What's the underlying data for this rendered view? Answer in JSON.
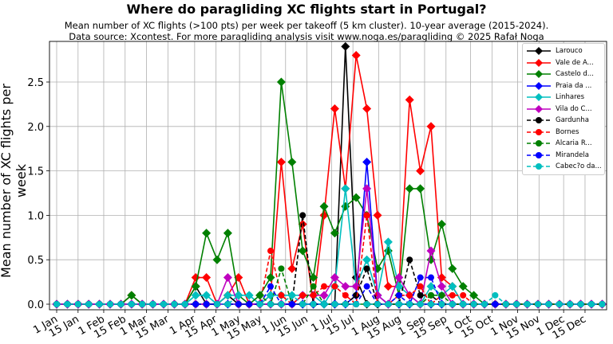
{
  "title": "Where do paragliding XC flights start in Portugal?",
  "subtitle1": "Mean number of XC flights (>100 pts) per week per takeoff (5 km cluster). 10-year average (2015-2024).",
  "subtitle2": "Data source: Xcontest. For more paragliding analysis visit www.noga.es/paragliding © 2025 Rafał Noga",
  "chart_data": {
    "type": "line",
    "title": "Where do paragliding XC flights start in Portugal?",
    "xlabel": "",
    "ylabel": "Mean number of XC flights per week",
    "ylim": [
      -0.05,
      2.95
    ],
    "grid": true,
    "legend_position": "upper right",
    "x_ticks": [
      "1 Jan",
      "15 Jan",
      "1 Feb",
      "15 Feb",
      "1 Mar",
      "15 Mar",
      "1 Apr",
      "15 Apr",
      "1 May",
      "15 May",
      "1 Jun",
      "15 Jun",
      "1 Jul",
      "15 Jul",
      "1 Aug",
      "15 Aug",
      "1 Sep",
      "15 Sep",
      "1 Oct",
      "15 Oct",
      "1 Nov",
      "15 Nov",
      "1 Dec",
      "15 Dec"
    ],
    "y_ticks": [
      "0.0",
      "0.5",
      "1.0",
      "1.5",
      "2.0",
      "2.5"
    ],
    "x": "week index 0-51",
    "series": [
      {
        "name": "Larouco",
        "color": "#000000",
        "style": "solid",
        "marker": "diamond",
        "values": [
          0,
          0,
          0,
          0,
          0,
          0,
          0,
          0,
          0,
          0,
          0,
          0,
          0,
          0.2,
          0,
          0,
          0.1,
          0,
          0,
          0,
          0,
          0,
          0,
          0,
          0,
          0,
          0,
          2.9,
          0.3,
          0,
          0,
          0,
          0,
          0,
          0,
          0,
          0,
          0,
          0,
          0,
          0,
          0,
          0,
          0,
          0,
          0,
          0,
          0,
          0,
          0,
          0,
          0
        ]
      },
      {
        "name": "Vale de A...",
        "color": "#ff0000",
        "style": "solid",
        "marker": "diamond",
        "values": [
          0,
          0,
          0,
          0,
          0,
          0,
          0,
          0.1,
          0,
          0,
          0,
          0,
          0,
          0.3,
          0.3,
          0,
          0.1,
          0.3,
          0,
          0,
          0.1,
          1.6,
          0.4,
          0.9,
          0,
          1.0,
          2.2,
          1.3,
          2.8,
          2.2,
          1.0,
          0.2,
          0.2,
          2.3,
          1.5,
          2.0,
          0.3,
          0.2,
          0,
          0,
          0,
          0,
          0,
          0,
          0,
          0,
          0,
          0,
          0,
          0,
          0,
          0
        ]
      },
      {
        "name": "Castelo d...",
        "color": "#008000",
        "style": "solid",
        "marker": "diamond",
        "values": [
          0,
          0,
          0,
          0,
          0,
          0,
          0,
          0.1,
          0,
          0,
          0,
          0,
          0,
          0.2,
          0.8,
          0.5,
          0.8,
          0.1,
          0,
          0.1,
          0.3,
          2.5,
          1.6,
          0.6,
          0.3,
          1.1,
          0.8,
          1.1,
          1.2,
          1.0,
          0.4,
          0.6,
          0.1,
          1.3,
          1.3,
          0.5,
          0.9,
          0.4,
          0.2,
          0.1,
          0,
          0,
          0,
          0,
          0,
          0,
          0,
          0,
          0,
          0,
          0,
          0
        ]
      },
      {
        "name": "Praia da ...",
        "color": "#0000ff",
        "style": "solid",
        "marker": "diamond",
        "values": [
          0,
          0,
          0,
          0,
          0,
          0,
          0,
          0,
          0,
          0,
          0,
          0,
          0,
          0,
          0,
          0,
          0,
          0,
          0,
          0,
          0,
          0,
          0,
          0,
          0,
          0,
          0,
          0,
          0.1,
          1.6,
          0.1,
          0,
          0,
          0,
          0,
          0,
          0,
          0,
          0,
          0,
          0,
          0,
          0,
          0,
          0,
          0,
          0,
          0,
          0,
          0,
          0,
          0
        ]
      },
      {
        "name": "Linhares",
        "color": "#00bfbf",
        "style": "solid",
        "marker": "diamond",
        "values": [
          0,
          0,
          0,
          0,
          0,
          0,
          0,
          0,
          0,
          0,
          0,
          0,
          0,
          0.1,
          0.1,
          0,
          0.1,
          0.1,
          0.1,
          0,
          0.1,
          0.1,
          0.1,
          0.1,
          0.1,
          0,
          0.2,
          1.3,
          0.2,
          0.5,
          0.1,
          0.7,
          0.2,
          0.1,
          0,
          0.2,
          0.1,
          0.2,
          0,
          0,
          0,
          0,
          0,
          0,
          0,
          0,
          0,
          0,
          0,
          0,
          0,
          0
        ]
      },
      {
        "name": "Vila do C...",
        "color": "#bf00bf",
        "style": "solid",
        "marker": "diamond",
        "values": [
          0,
          0,
          0,
          0,
          0,
          0,
          0,
          0,
          0,
          0,
          0,
          0,
          0,
          0,
          0,
          0,
          0.3,
          0,
          0,
          0,
          0,
          0,
          0,
          0.1,
          0.1,
          0.1,
          0.3,
          0.2,
          0.2,
          1.3,
          0.1,
          0,
          0.3,
          0.1,
          0,
          0.6,
          0.2,
          0,
          0,
          0,
          0,
          0,
          0,
          0,
          0,
          0,
          0,
          0,
          0,
          0,
          0,
          0
        ]
      },
      {
        "name": "Gardunha",
        "color": "#000000",
        "style": "dashed",
        "marker": "circle",
        "values": [
          0,
          0,
          0,
          0,
          0,
          0,
          0,
          0,
          0,
          0,
          0,
          0,
          0,
          0,
          0,
          0,
          0,
          0,
          0,
          0,
          0,
          0,
          0,
          1.0,
          0,
          0,
          0,
          0,
          0.1,
          0.4,
          0,
          0,
          0,
          0.5,
          0.1,
          0.1,
          0,
          0,
          0,
          0,
          0,
          0,
          0,
          0,
          0,
          0,
          0,
          0,
          0,
          0,
          0,
          0
        ]
      },
      {
        "name": "Bornes",
        "color": "#ff0000",
        "style": "dashed",
        "marker": "circle",
        "values": [
          0,
          0,
          0,
          0,
          0,
          0,
          0,
          0,
          0,
          0,
          0,
          0,
          0,
          0,
          0,
          0,
          0,
          0,
          0,
          0,
          0.6,
          0.1,
          0,
          0.1,
          0.1,
          0.2,
          0.2,
          0.1,
          0,
          1.0,
          0,
          0,
          0.1,
          0.1,
          0.2,
          0,
          0.1,
          0.1,
          0.1,
          0,
          0,
          0,
          0,
          0,
          0,
          0,
          0,
          0,
          0,
          0,
          0,
          0
        ]
      },
      {
        "name": "Alcaria R...",
        "color": "#008000",
        "style": "dashed",
        "marker": "circle",
        "values": [
          0,
          0,
          0,
          0,
          0,
          0,
          0,
          0.1,
          0,
          0,
          0,
          0,
          0,
          0,
          0,
          0,
          0,
          0,
          0,
          0.1,
          0,
          0.4,
          0,
          0,
          0.2,
          0,
          0,
          0,
          0,
          0,
          0,
          0,
          0,
          0,
          0,
          0.1,
          0.1,
          0,
          0,
          0,
          0,
          0,
          0,
          0,
          0,
          0,
          0,
          0,
          0,
          0,
          0,
          0
        ]
      },
      {
        "name": "Mirandela",
        "color": "#0000ff",
        "style": "dashed",
        "marker": "circle",
        "values": [
          0,
          0,
          0,
          0,
          0,
          0,
          0,
          0,
          0,
          0,
          0,
          0,
          0,
          0,
          0,
          0,
          0,
          0,
          0,
          0,
          0.2,
          0,
          0,
          0,
          0,
          0,
          0,
          0,
          0,
          0.2,
          0,
          0,
          0.1,
          0,
          0.3,
          0.3,
          0,
          0,
          0,
          0,
          0,
          0,
          0,
          0,
          0,
          0,
          0,
          0,
          0,
          0,
          0,
          0
        ]
      },
      {
        "name": "Cabec?o da...",
        "color": "#00bfbf",
        "style": "dashed",
        "marker": "circle",
        "values": [
          0,
          0,
          0,
          0,
          0,
          0,
          0,
          0,
          0,
          0,
          0,
          0,
          0,
          0.1,
          0.1,
          0,
          0,
          0.1,
          0.1,
          0,
          0,
          0,
          0.1,
          0,
          0,
          0,
          0,
          0,
          0,
          0,
          0,
          0,
          0,
          0,
          0,
          0,
          0,
          0,
          0,
          0,
          0,
          0.1,
          0,
          0,
          0,
          0,
          0,
          0,
          0,
          0,
          0,
          0
        ]
      }
    ]
  }
}
